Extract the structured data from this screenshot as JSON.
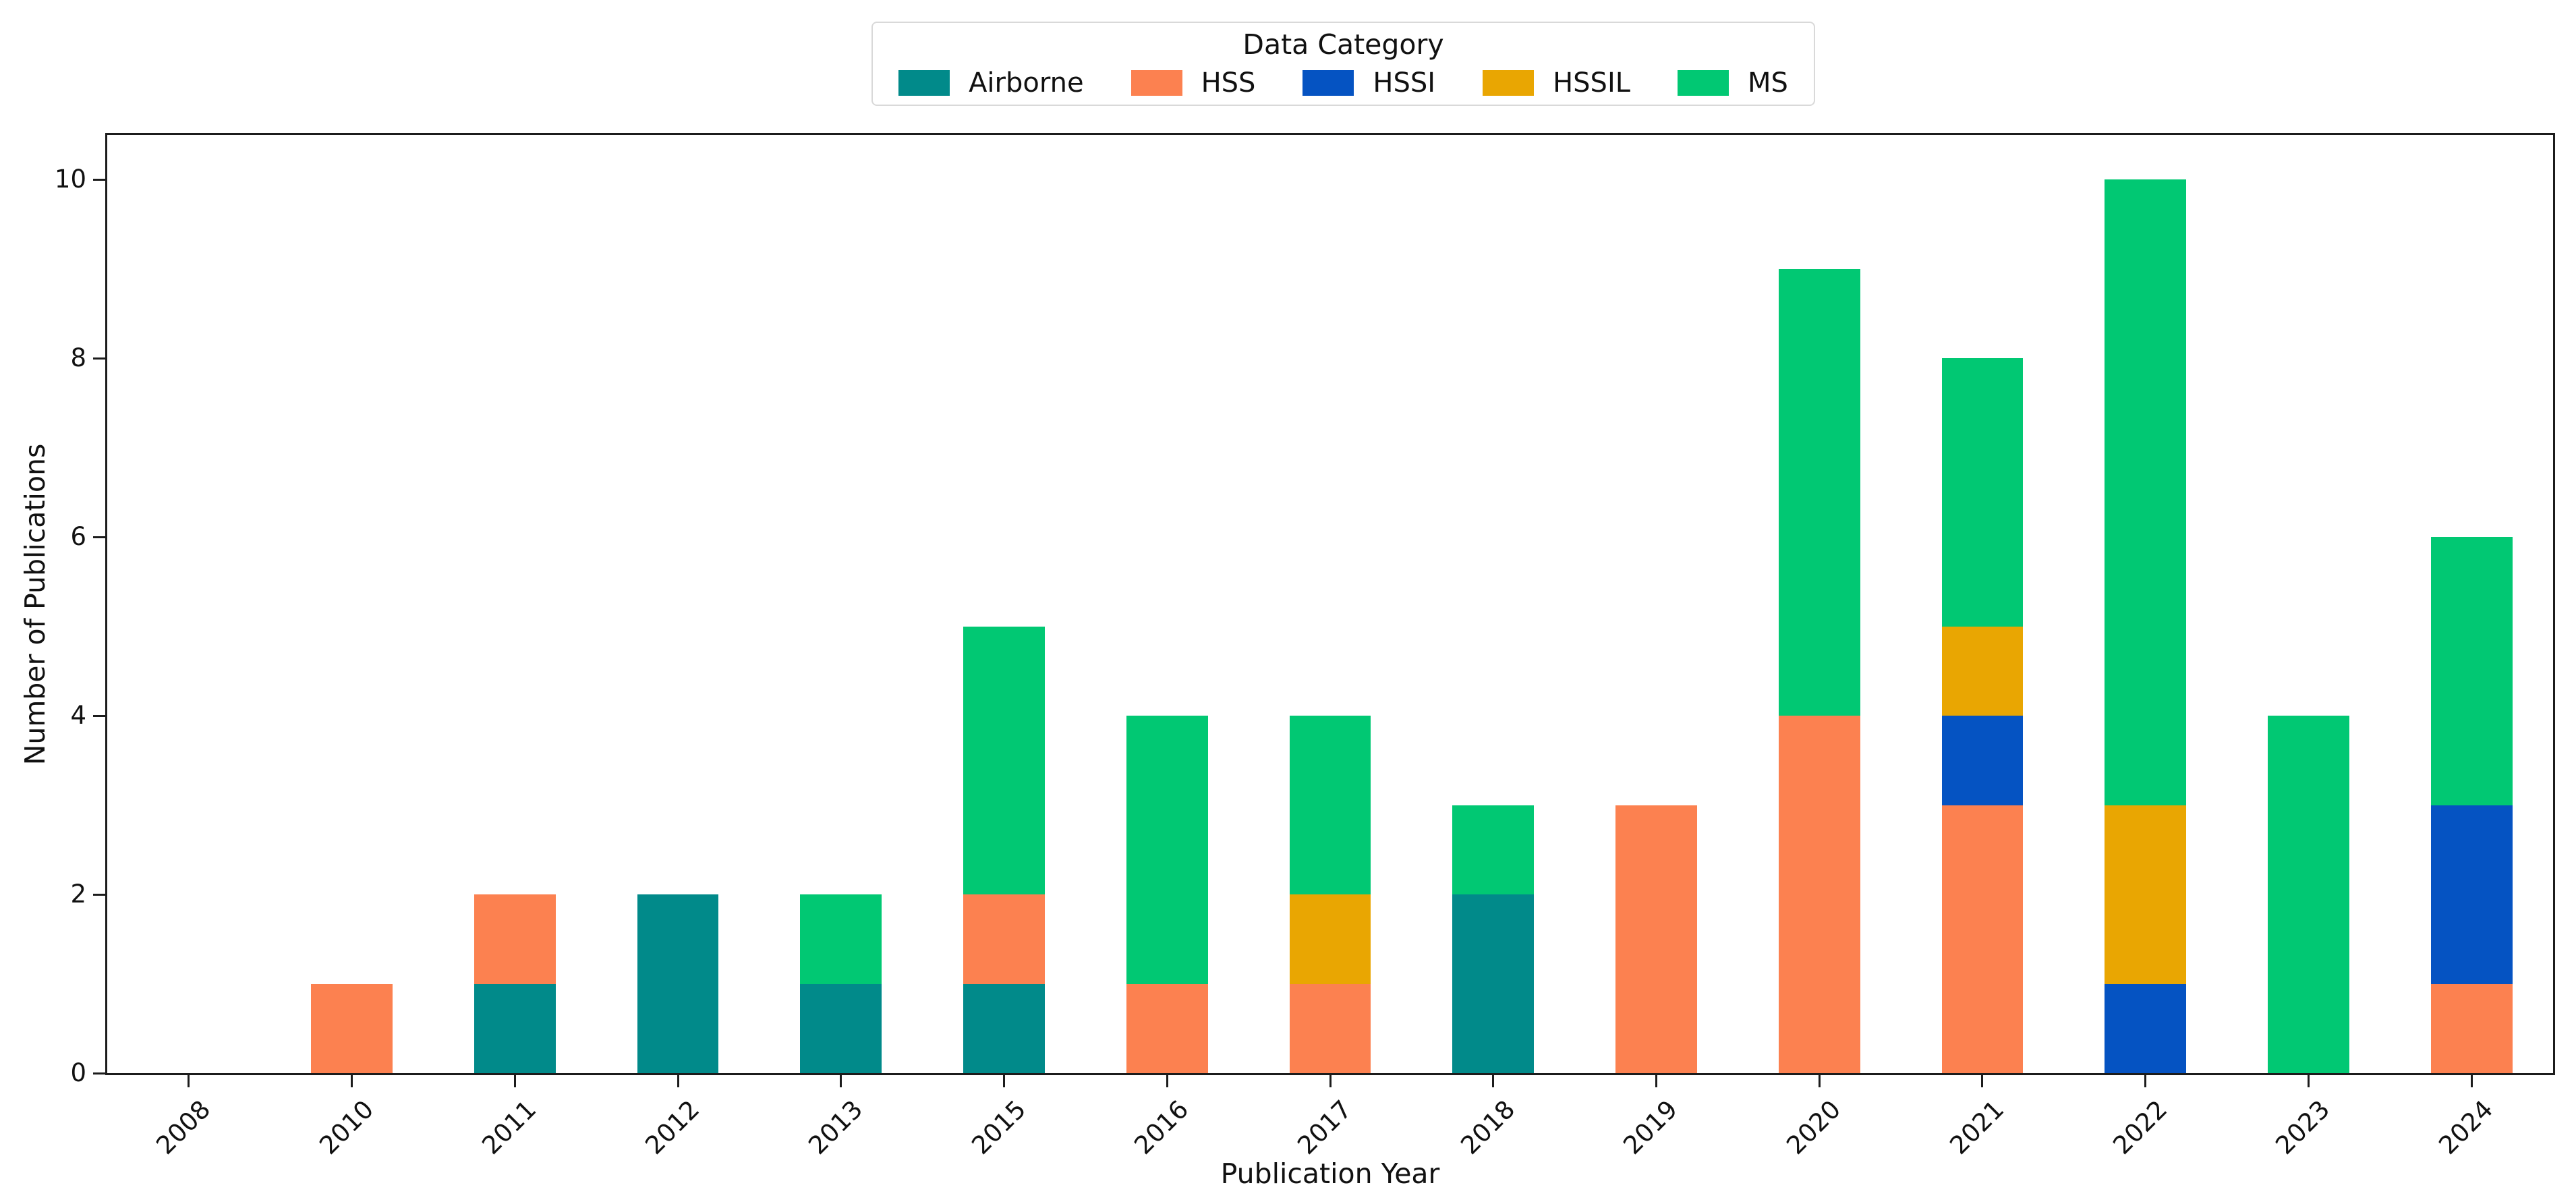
{
  "chart_data": {
    "type": "bar",
    "stacked": true,
    "xlabel": "Publication Year",
    "ylabel": "Number of Publications",
    "legend_title": "Data Category",
    "legend_position": "upper center, above plot",
    "grid": false,
    "categories": [
      "2008",
      "2010",
      "2011",
      "2012",
      "2013",
      "2015",
      "2016",
      "2017",
      "2018",
      "2019",
      "2020",
      "2021",
      "2022",
      "2023",
      "2024"
    ],
    "series": [
      {
        "name": "Airborne",
        "color": "#018A8A",
        "values": [
          0,
          0,
          1,
          2,
          1,
          1,
          0,
          0,
          2,
          0,
          0,
          0,
          0,
          0,
          0
        ]
      },
      {
        "name": "HSS",
        "color": "#FC8150",
        "values": [
          0,
          1,
          1,
          0,
          0,
          1,
          1,
          1,
          0,
          3,
          4,
          3,
          0,
          0,
          1
        ]
      },
      {
        "name": "HSSI",
        "color": "#0553C2",
        "values": [
          0,
          0,
          0,
          0,
          0,
          0,
          0,
          0,
          0,
          0,
          0,
          1,
          1,
          0,
          2
        ]
      },
      {
        "name": "HSSIL",
        "color": "#E9A602",
        "values": [
          0,
          0,
          0,
          0,
          0,
          0,
          0,
          1,
          0,
          0,
          0,
          1,
          2,
          0,
          0
        ]
      },
      {
        "name": "MS",
        "color": "#01C873",
        "values": [
          0,
          0,
          0,
          0,
          1,
          3,
          3,
          2,
          1,
          0,
          5,
          3,
          7,
          4,
          3
        ]
      }
    ],
    "totals": [
      0,
      1,
      2,
      2,
      2,
      5,
      4,
      4,
      3,
      3,
      9,
      8,
      10,
      4,
      6
    ],
    "yticks": [
      0,
      2,
      4,
      6,
      8,
      10
    ],
    "ylim": [
      0,
      10.5
    ],
    "bar_width_fraction": 0.5,
    "axis_color": "#1c1c1c",
    "background_color": "#ffffff"
  }
}
